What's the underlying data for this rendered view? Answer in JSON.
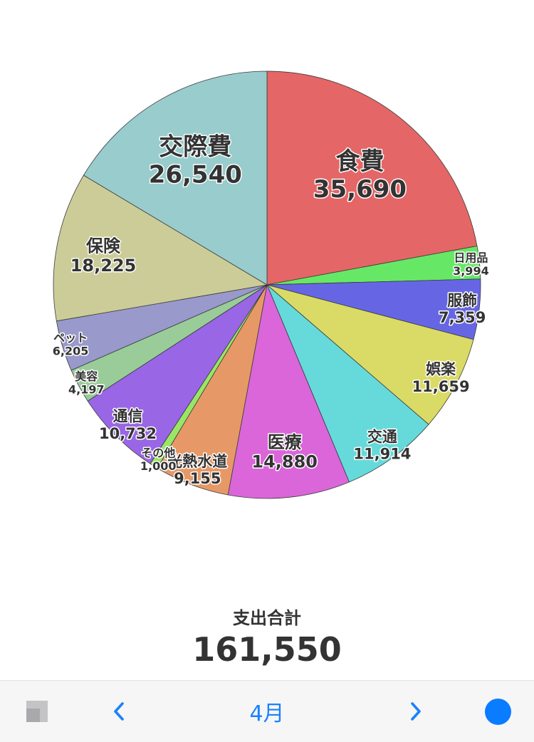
{
  "chart_data": {
    "type": "pie",
    "start_angle_deg": -90,
    "direction": "clockwise",
    "slices": [
      {
        "label": "食費",
        "value": 35690,
        "value_text": "35,690",
        "color": "#e56666"
      },
      {
        "label": "日用品",
        "value": 3994,
        "value_text": "3,994",
        "color": "#66e866"
      },
      {
        "label": "服飾",
        "value": 7359,
        "value_text": "7,359",
        "color": "#6666e5"
      },
      {
        "label": "娯楽",
        "value": 11659,
        "value_text": "11,659",
        "color": "#dada66"
      },
      {
        "label": "交通",
        "value": 11914,
        "value_text": "11,914",
        "color": "#66dada"
      },
      {
        "label": "医療",
        "value": 14880,
        "value_text": "14,880",
        "color": "#da66da"
      },
      {
        "label": "光熱水道",
        "value": 9155,
        "value_text": "9,155",
        "color": "#e69966"
      },
      {
        "label": "その他",
        "value": 1000,
        "value_text": "1,000",
        "color": "#99e666"
      },
      {
        "label": "通信",
        "value": 10732,
        "value_text": "10,732",
        "color": "#9966e6"
      },
      {
        "label": "美容",
        "value": 4197,
        "value_text": "4,197",
        "color": "#99cc99"
      },
      {
        "label": "ペット",
        "value": 6205,
        "value_text": "6,205",
        "color": "#9999cc"
      },
      {
        "label": "保険",
        "value": 18225,
        "value_text": "18,225",
        "color": "#cccc99"
      },
      {
        "label": "交際費",
        "value": 26540,
        "value_text": "26,540",
        "color": "#99cccc"
      }
    ]
  },
  "summary": {
    "label": "支出合計",
    "value": "161,550"
  },
  "toolbar": {
    "month": "4月",
    "layout_icon": "layout-icon",
    "prev_icon": "chevron-left-icon",
    "next_icon": "chevron-right-icon",
    "record_icon": "record-dot-icon",
    "accent_color": "#1a82fb",
    "background_color": "#f6f6f7"
  }
}
